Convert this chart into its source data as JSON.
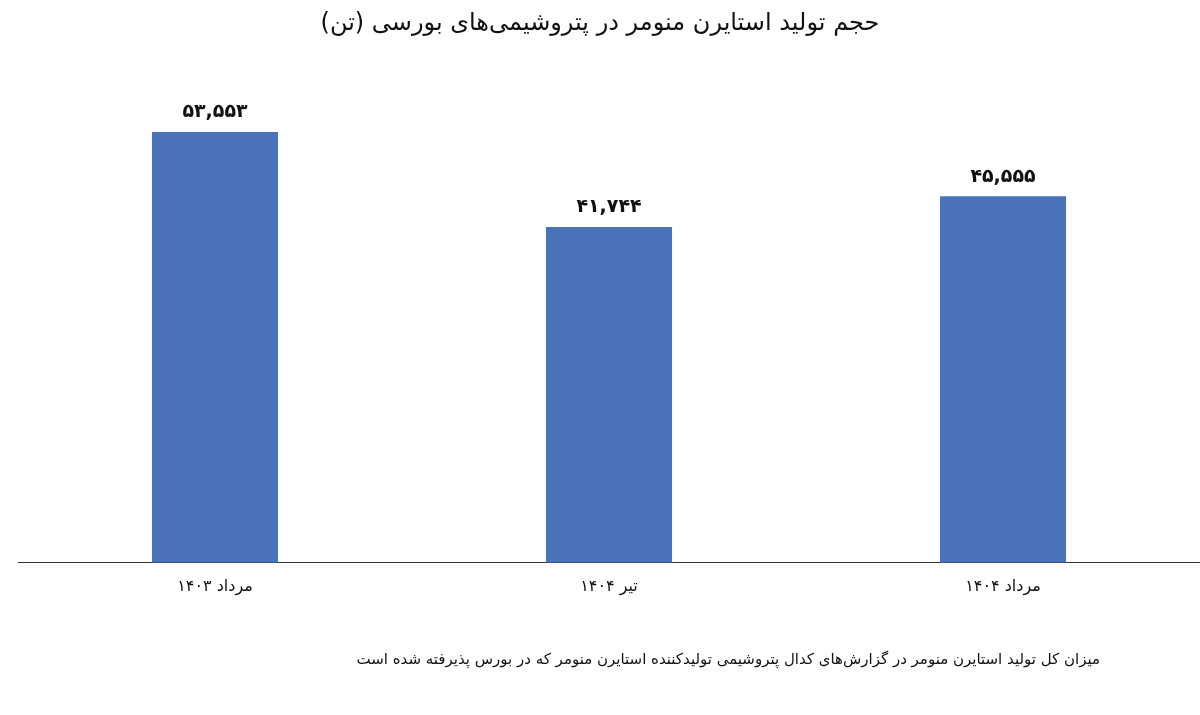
{
  "chart_data": {
    "type": "bar",
    "title": "حجم تولید استایرن منومر در پتروشیمی‌های بورسی (تن)",
    "categories": [
      "مرداد ۱۴۰۳",
      "تیر ۱۴۰۴",
      "مرداد ۱۴۰۴"
    ],
    "values": [
      53553,
      41744,
      45555
    ],
    "value_labels": [
      "۵۳,۵۵۳",
      "۴۱,۷۴۴",
      "۴۵,۵۵۵"
    ],
    "color": "#4a72b8",
    "grid": false,
    "legend": false,
    "annotations": [
      "میزان کل تولید استایرن منومر در گزارش‌های کدال پتروشیمی تولیدکننده استایرن منومر که در بورس پذیرفته شده است"
    ]
  }
}
